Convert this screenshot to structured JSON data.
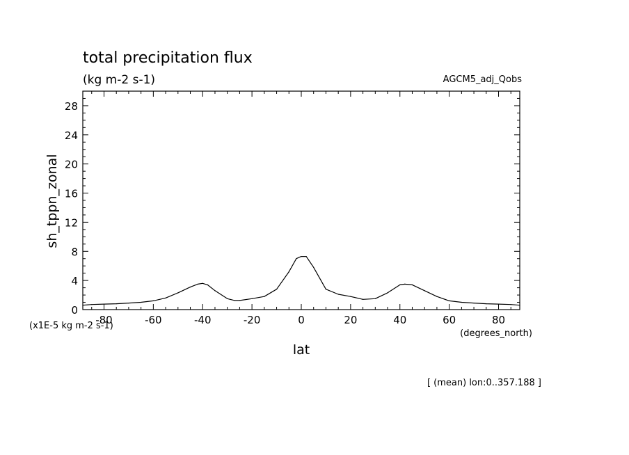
{
  "chart_data": {
    "type": "line",
    "title": "total precipitation flux",
    "units": "(kg m-2 s-1)",
    "model_label": "AGCM5_adj_Qobs",
    "ylabel": "sh_tppn_zonal",
    "yscale_note": "(x1E-5 kg m-2 s-1)",
    "xlabel": "lat",
    "xunits": "(degrees_north)",
    "footnote": "[ (mean) lon:0..357.188 ]",
    "xlim": [
      -88.6,
      88.6
    ],
    "ylim": [
      0,
      30
    ],
    "xticks": [
      -80,
      -60,
      -40,
      -20,
      0,
      20,
      40,
      60,
      80
    ],
    "xtick_labels": [
      "-80",
      "-60",
      "-40",
      "-20",
      "0",
      "20",
      "40",
      "60",
      "80"
    ],
    "yticks": [
      0,
      4,
      8,
      12,
      16,
      20,
      24,
      28
    ],
    "ytick_labels": [
      "0",
      "4",
      "8",
      "12",
      "16",
      "20",
      "24",
      "28"
    ],
    "grid": false,
    "series": [
      {
        "x": [
          -88.6,
          -85,
          -80,
          -75,
          -70,
          -65,
          -60,
          -55,
          -50,
          -45,
          -42,
          -40,
          -38,
          -35,
          -30,
          -27,
          -25,
          -20,
          -15,
          -10,
          -5,
          -2,
          0,
          2,
          5,
          10,
          15,
          20,
          25,
          30,
          35,
          40,
          42,
          45,
          50,
          55,
          60,
          65,
          70,
          75,
          80,
          85,
          88.6
        ],
        "y": [
          0.6,
          0.7,
          0.75,
          0.8,
          0.9,
          1.0,
          1.2,
          1.6,
          2.3,
          3.1,
          3.5,
          3.6,
          3.4,
          2.6,
          1.5,
          1.25,
          1.25,
          1.5,
          1.8,
          2.8,
          5.2,
          7.0,
          7.3,
          7.3,
          5.8,
          2.8,
          2.1,
          1.8,
          1.4,
          1.5,
          2.3,
          3.4,
          3.5,
          3.4,
          2.6,
          1.8,
          1.2,
          1.0,
          0.9,
          0.8,
          0.75,
          0.7,
          0.6
        ]
      }
    ]
  }
}
